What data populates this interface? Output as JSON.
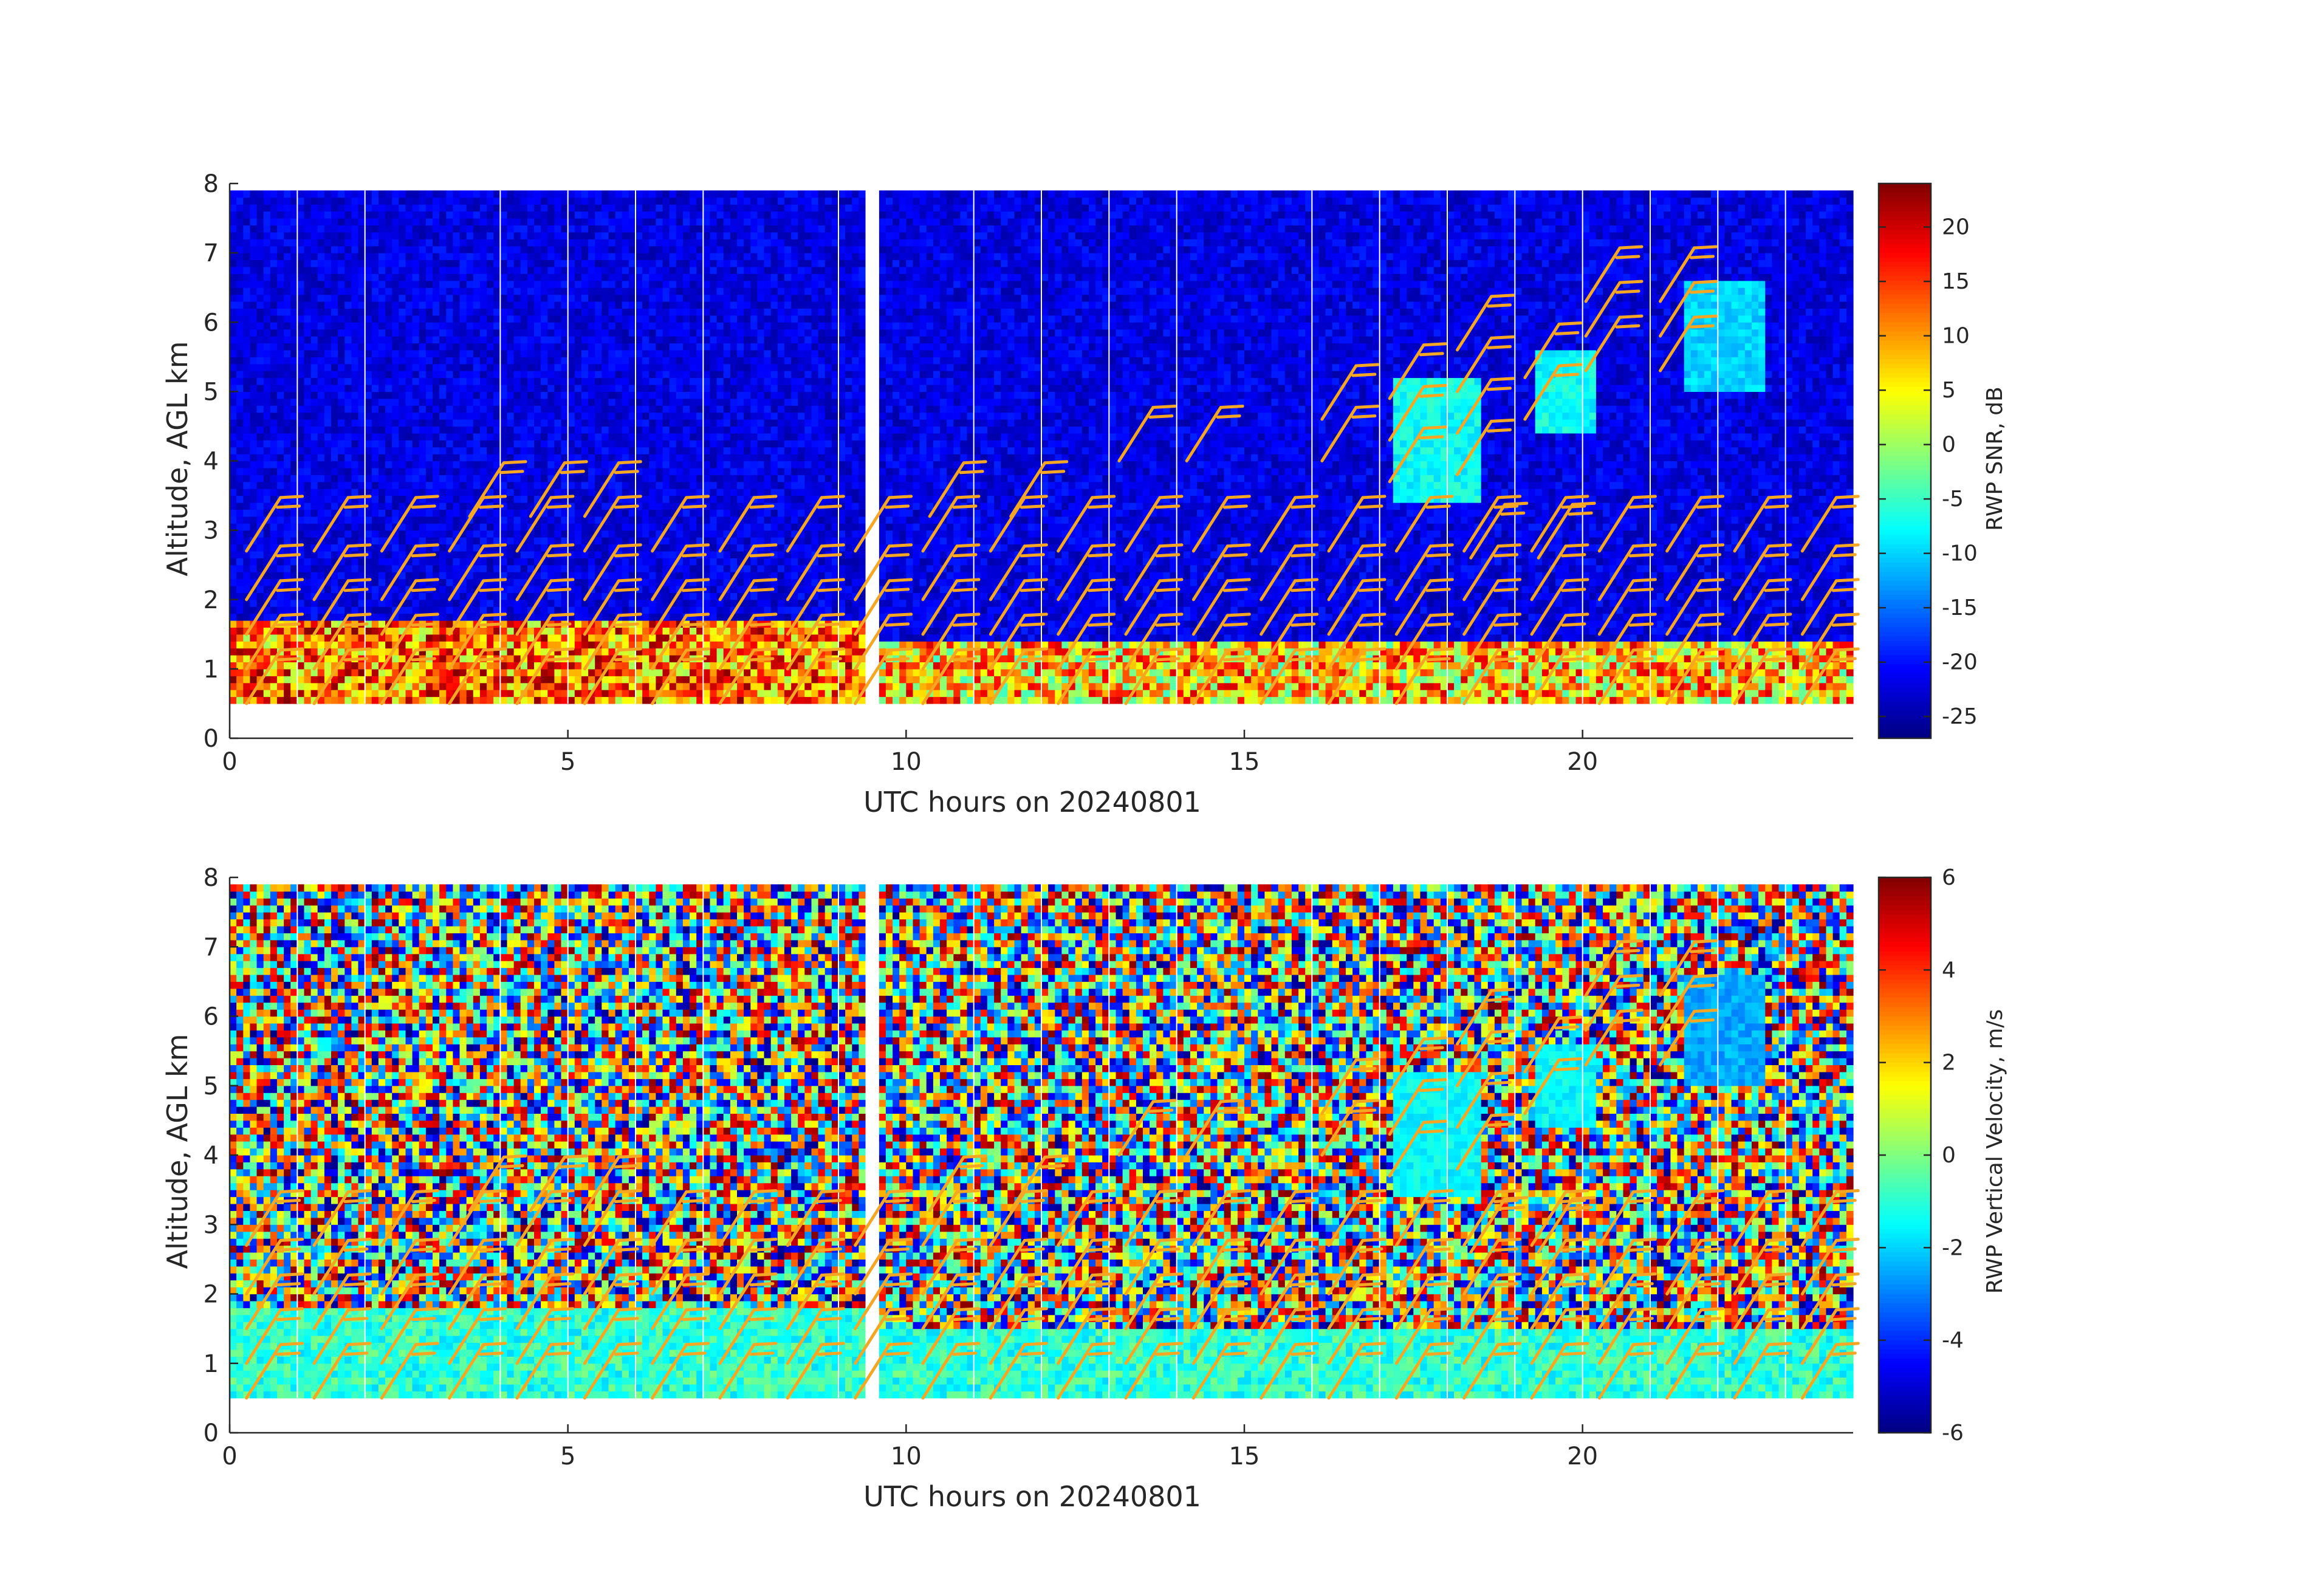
{
  "chart_data": [
    {
      "type": "heatmap",
      "panel": "top",
      "xlabel": "UTC hours on 20240801",
      "ylabel": "Altitude, AGL km",
      "xlim": [
        0,
        24
      ],
      "ylim": [
        0,
        8
      ],
      "x_ticks": [
        0,
        5,
        10,
        15,
        20
      ],
      "y_ticks": [
        0,
        1,
        2,
        3,
        4,
        5,
        6,
        7,
        8
      ],
      "data_altitude_range_km": [
        0.5,
        7.9
      ],
      "colorbar": {
        "label": "RWP SNR, dB",
        "colormap": "jet",
        "range": [
          -27,
          24
        ],
        "ticks": [
          20,
          15,
          10,
          5,
          0,
          -5,
          -10,
          -15,
          -20,
          -25
        ]
      },
      "gap_hours": [
        9.4,
        9.6
      ],
      "vertical_lines_hours": [
        1,
        2,
        4,
        5,
        6,
        7,
        9,
        11,
        12,
        13,
        14,
        16,
        17,
        18,
        19,
        20,
        21,
        22,
        23
      ],
      "features": [
        {
          "description": "Boundary layer echo",
          "hours": [
            0,
            9.4
          ],
          "altitude_km": [
            0.5,
            1.7
          ],
          "snr_db": [
            0,
            24
          ]
        },
        {
          "description": "Boundary layer echo",
          "hours": [
            9.6,
            24
          ],
          "altitude_km": [
            0.5,
            1.4
          ],
          "snr_db": [
            -5,
            20
          ]
        },
        {
          "description": "Cloud echo",
          "hours": [
            17.2,
            18.5
          ],
          "altitude_km": [
            3.4,
            5.2
          ],
          "snr_db": [
            -10,
            -5
          ]
        },
        {
          "description": "Cloud echo",
          "hours": [
            19.3,
            20.2
          ],
          "altitude_km": [
            4.4,
            5.6
          ],
          "snr_db": [
            -10,
            -5
          ]
        },
        {
          "description": "Cloud echo",
          "hours": [
            21.5,
            22.7
          ],
          "altitude_km": [
            5.0,
            6.6
          ],
          "snr_db": [
            -12,
            -8
          ]
        }
      ],
      "background_snr_db": -22
    },
    {
      "type": "heatmap",
      "panel": "bottom",
      "xlabel": "UTC hours on 20240801",
      "ylabel": "Altitude, AGL km",
      "xlim": [
        0,
        24
      ],
      "ylim": [
        0,
        8
      ],
      "x_ticks": [
        0,
        5,
        10,
        15,
        20
      ],
      "y_ticks": [
        0,
        1,
        2,
        3,
        4,
        5,
        6,
        7,
        8
      ],
      "data_altitude_range_km": [
        0.5,
        7.9
      ],
      "colorbar": {
        "label": "RWP Vertical Velocity, m/s",
        "colormap": "jet",
        "range": [
          -6,
          6
        ],
        "ticks": [
          6,
          4,
          2,
          0,
          -2,
          -4,
          -6
        ]
      },
      "gap_hours": [
        9.4,
        9.6
      ],
      "vertical_lines_hours": [
        1,
        2,
        4,
        5,
        6,
        7,
        9,
        11,
        12,
        13,
        14,
        16,
        17,
        18,
        19,
        20,
        21,
        22,
        23
      ],
      "features": [
        {
          "description": "Boundary layer",
          "hours": [
            0,
            9.4
          ],
          "altitude_km": [
            0.5,
            1.8
          ],
          "velocity_ms": [
            -2,
            0
          ]
        },
        {
          "description": "Boundary layer",
          "hours": [
            9.6,
            24
          ],
          "altitude_km": [
            0.5,
            1.5
          ],
          "velocity_ms": [
            -2,
            0
          ]
        },
        {
          "description": "Cloud",
          "hours": [
            17.2,
            18.5
          ],
          "altitude_km": [
            3.4,
            5.2
          ],
          "velocity_ms": [
            -2,
            -1
          ]
        },
        {
          "description": "Cloud",
          "hours": [
            19.3,
            20.2
          ],
          "altitude_km": [
            4.4,
            5.6
          ],
          "velocity_ms": [
            -2,
            -1
          ]
        },
        {
          "description": "Cloud",
          "hours": [
            21.5,
            22.7
          ],
          "altitude_km": [
            5.0,
            6.6
          ],
          "velocity_ms": [
            -3,
            -2
          ]
        }
      ],
      "background": "noise spanning full colormap range"
    }
  ],
  "wind_barbs": {
    "color": "#f5a623",
    "hours": [
      0.5,
      1.5,
      2.5,
      3.5,
      4.5,
      5.5,
      6.5,
      7.5,
      8.5,
      9.5,
      10.5,
      11.5,
      12.5,
      13.5,
      14.5,
      15.5,
      16.5,
      17.5,
      18.5,
      19.5,
      20.5,
      21.5,
      22.5,
      23.5
    ],
    "low_levels_km": [
      0.5,
      1.0,
      1.5,
      2.0,
      2.7
    ],
    "upper": [
      {
        "hour": 3.8,
        "alt_km": 3.2
      },
      {
        "hour": 4.7,
        "alt_km": 3.2
      },
      {
        "hour": 5.5,
        "alt_km": 3.2
      },
      {
        "hour": 10.6,
        "alt_km": 3.2
      },
      {
        "hour": 11.8,
        "alt_km": 3.2
      },
      {
        "hour": 13.4,
        "alt_km": 4.0
      },
      {
        "hour": 14.4,
        "alt_km": 4.0
      },
      {
        "hour": 16.4,
        "alt_km": 4.0
      },
      {
        "hour": 16.4,
        "alt_km": 4.6
      },
      {
        "hour": 17.4,
        "alt_km": 3.7
      },
      {
        "hour": 17.4,
        "alt_km": 4.3
      },
      {
        "hour": 17.4,
        "alt_km": 4.9
      },
      {
        "hour": 18.4,
        "alt_km": 3.8
      },
      {
        "hour": 18.4,
        "alt_km": 4.4
      },
      {
        "hour": 18.4,
        "alt_km": 5.0
      },
      {
        "hour": 18.4,
        "alt_km": 5.6
      },
      {
        "hour": 18.6,
        "alt_km": 2.6
      },
      {
        "hour": 19.6,
        "alt_km": 2.6
      },
      {
        "hour": 19.4,
        "alt_km": 4.6
      },
      {
        "hour": 19.4,
        "alt_km": 5.2
      },
      {
        "hour": 20.3,
        "alt_km": 5.3
      },
      {
        "hour": 20.3,
        "alt_km": 5.8
      },
      {
        "hour": 20.3,
        "alt_km": 6.3
      },
      {
        "hour": 21.4,
        "alt_km": 5.3
      },
      {
        "hour": 21.4,
        "alt_km": 5.8
      },
      {
        "hour": 21.4,
        "alt_km": 6.3
      }
    ]
  }
}
